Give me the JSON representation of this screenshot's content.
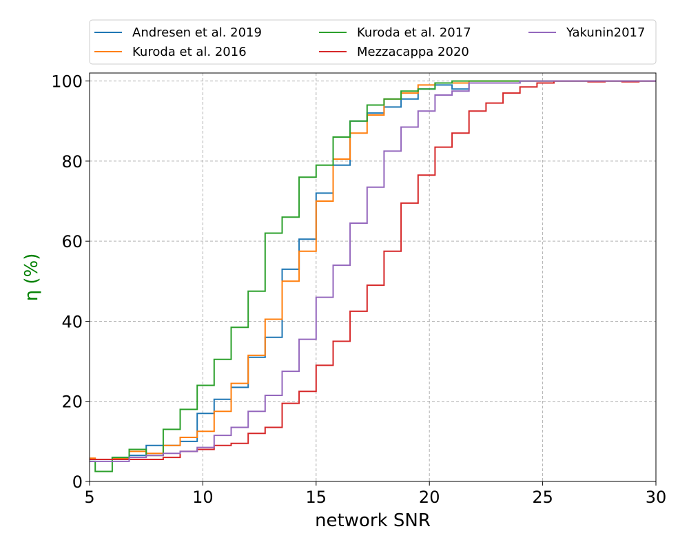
{
  "chart_data": {
    "type": "line",
    "step": true,
    "title": "",
    "xlabel": "network SNR",
    "ylabel": "η (%)",
    "ylabel_color": "#008000",
    "xlim": [
      5,
      30
    ],
    "ylim": [
      0,
      102
    ],
    "xticks": [
      5,
      10,
      15,
      20,
      25,
      30
    ],
    "yticks": [
      0,
      20,
      40,
      60,
      80,
      100
    ],
    "xtick_labels": [
      "5",
      "10",
      "15",
      "20",
      "25",
      "30"
    ],
    "ytick_labels": [
      "0",
      "20",
      "40",
      "60",
      "80",
      "100"
    ],
    "grid": true,
    "legend_position": "top, above plot",
    "bin_edges": [
      5,
      5.25,
      6,
      6.75,
      7.5,
      8.25,
      9,
      9.75,
      10.5,
      11.25,
      12,
      12.75,
      13.5,
      14.25,
      15,
      15.75,
      16.5,
      17.25,
      18,
      18.75,
      19.5,
      20.25,
      21,
      21.75,
      22.5,
      23.25,
      24,
      24.75,
      25.5,
      26.25,
      27,
      27.75,
      28.5,
      29.25,
      30
    ],
    "series": [
      {
        "name": "Andresen et al. 2019",
        "color": "#1f77b4",
        "values": [
          5.5,
          5.5,
          6,
          6.5,
          9,
          9,
          10,
          17,
          20.5,
          23.5,
          31,
          36,
          53,
          60.5,
          72,
          79,
          90,
          92,
          93.5,
          95.5,
          98,
          99,
          98,
          99.5,
          99.5,
          99.5,
          100,
          100,
          100,
          100,
          100,
          100,
          100,
          100
        ]
      },
      {
        "name": "Kuroda et al. 2016",
        "color": "#ff7f0e",
        "values": [
          5.8,
          5.5,
          5.8,
          7.5,
          7,
          9,
          11,
          12.5,
          17.5,
          24.5,
          31.5,
          40.5,
          50,
          57.5,
          70,
          80.5,
          87,
          91.5,
          95.5,
          97,
          99,
          99.5,
          99.5,
          100,
          100,
          100,
          100,
          100,
          100,
          100,
          100,
          100,
          100,
          100
        ]
      },
      {
        "name": "Kuroda et al. 2017",
        "color": "#2ca02c",
        "values": [
          5,
          2.5,
          6,
          8,
          6.5,
          13,
          18,
          24,
          30.5,
          38.5,
          47.5,
          62,
          66,
          76,
          79,
          86,
          90,
          94,
          95.5,
          97.5,
          98,
          99.5,
          100,
          100,
          100,
          100,
          100,
          100,
          100,
          100,
          100,
          100,
          100,
          100
        ]
      },
      {
        "name": "Mezzacappa 2020",
        "color": "#d62728",
        "values": [
          5.5,
          5.5,
          5.5,
          5.5,
          5.5,
          6,
          7.5,
          8,
          9,
          9.5,
          12,
          13.5,
          19.5,
          22.5,
          29,
          35,
          42.5,
          49,
          57.5,
          69.5,
          76.5,
          83.5,
          87,
          92.5,
          94.5,
          97,
          98.5,
          99.5,
          100,
          100,
          99.8,
          100,
          99.8,
          100
        ]
      },
      {
        "name": "Yakunin2017",
        "color": "#9467bd",
        "values": [
          5,
          5,
          5,
          6,
          6.5,
          7,
          7.5,
          8.5,
          11.5,
          13.5,
          17.5,
          21.5,
          27.5,
          35.5,
          46,
          54,
          64.5,
          73.5,
          82.5,
          88.5,
          92.5,
          96.5,
          97.5,
          99.5,
          99.5,
          99.5,
          100,
          100,
          100,
          100,
          100,
          100,
          100,
          100
        ]
      }
    ]
  }
}
